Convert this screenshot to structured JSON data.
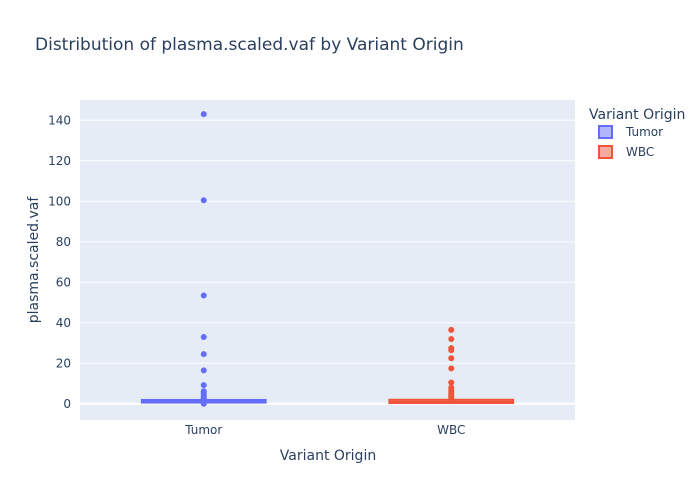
{
  "chart_data": {
    "type": "box",
    "title": "Distribution of plasma.scaled.vaf by Variant Origin",
    "xlabel": "Variant Origin",
    "ylabel": "plasma.scaled.vaf",
    "categories": [
      "Tumor",
      "WBC"
    ],
    "ylim": [
      -8,
      150
    ],
    "yticks": [
      0,
      20,
      40,
      60,
      80,
      100,
      120,
      140
    ],
    "grid": true,
    "legend": {
      "title": "Variant Origin",
      "position": "top-right"
    },
    "series": [
      {
        "name": "Tumor",
        "color": "#636efa",
        "fill": "#b1b6fc",
        "q1": 0.6,
        "median": 1.1,
        "q3": 1.9,
        "lowerfence": 0.1,
        "upperfence": 1.6,
        "outliers": [
          143,
          100.5,
          53.5,
          33,
          24.5,
          16.5,
          9.2,
          6.2,
          5.3,
          4.5,
          3.8,
          3.2,
          2.6,
          2.2,
          0.0
        ]
      },
      {
        "name": "WBC",
        "color": "#ef553b",
        "fill": "#f7aa9d",
        "q1": 0.4,
        "median": 1.0,
        "q3": 2.0,
        "lowerfence": 0.0,
        "upperfence": 1.3,
        "outliers": [
          36.5,
          32,
          27.5,
          26.5,
          22.5,
          17.5,
          10.5,
          8,
          6.8,
          5.8,
          4.8,
          4,
          3.3,
          2.6
        ]
      }
    ]
  }
}
